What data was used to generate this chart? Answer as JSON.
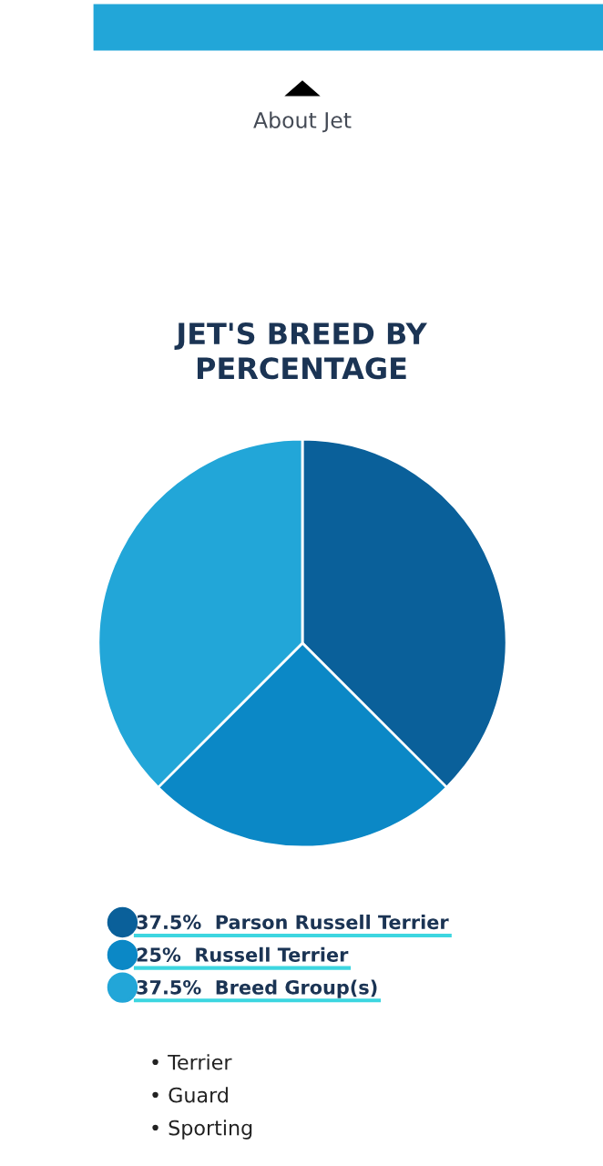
{
  "chart_data": {
    "type": "pie",
    "title": "JET'S BREED BY\nPERCENTAGE",
    "categories": [
      "Parson Russell Terrier",
      "Russell Terrier",
      "Breed Group(s)"
    ],
    "values": [
      37.5,
      25,
      37.5
    ],
    "value_labels": [
      "37.5%",
      "25%",
      "37.5%"
    ],
    "colors": [
      "#0a609a",
      "#0b88c6",
      "#22a6d8"
    ],
    "legend": "bottom",
    "annotations": [
      "About Jet",
      "• Terrier",
      "• Guard",
      "• Sporting"
    ]
  }
}
